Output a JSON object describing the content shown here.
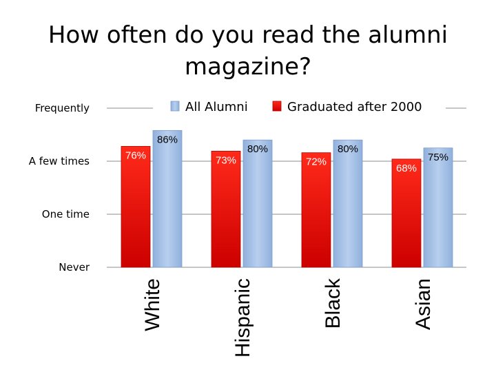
{
  "chart_data": {
    "type": "bar",
    "title_lines": [
      "How often do you read the alumni",
      "magazine?"
    ],
    "categories": [
      "White",
      "Hispanic",
      "Black",
      "Asian"
    ],
    "series": [
      {
        "name": "Graduated after 2000",
        "values": [
          76,
          73,
          72,
          68
        ],
        "labels": [
          "76%",
          "73%",
          "72%",
          "68%"
        ],
        "color": "#e60000"
      },
      {
        "name": "All Alumni",
        "values": [
          86,
          80,
          80,
          75
        ],
        "labels": [
          "86%",
          "80%",
          "80%",
          "75%"
        ],
        "color": "#a6c0e4"
      }
    ],
    "y_ticks": [
      {
        "value": 0,
        "label": "Never"
      },
      {
        "value": 33.33,
        "label": "One time"
      },
      {
        "value": 66.67,
        "label": "A few times"
      },
      {
        "value": 100,
        "label": "Frequently"
      }
    ],
    "ylim": [
      0,
      100
    ],
    "legend_order": [
      "All Alumni",
      "Graduated after 2000"
    ],
    "legend_position": "top",
    "grid": true
  }
}
